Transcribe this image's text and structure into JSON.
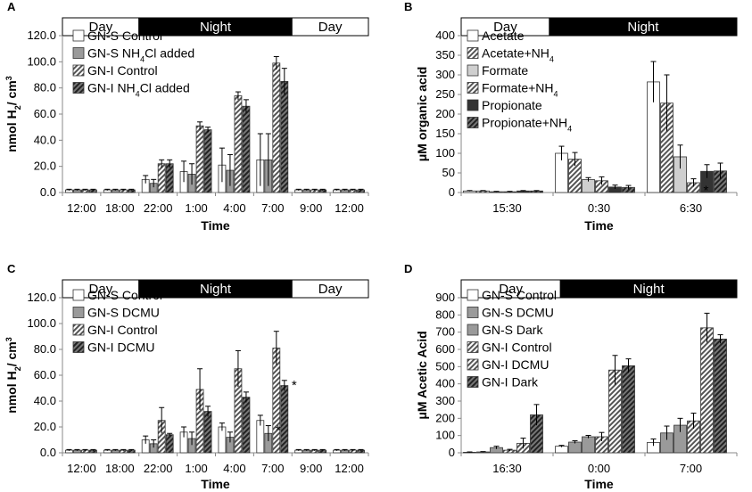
{
  "chart_data": [
    {
      "panel": "A",
      "type": "bar",
      "xlabel": "Time",
      "ylabel_main": "nmol H",
      "ylabel_sub": "2",
      "ylabel_rest": "/ cm",
      "ylabel_sup": "3",
      "ylim": [
        0,
        120
      ],
      "yticks": [
        "0.0",
        "20.0",
        "40.0",
        "60.0",
        "80.0",
        "100.0",
        "120.0"
      ],
      "categories": [
        "12:00",
        "18:00",
        "22:00",
        "1:00",
        "4:00",
        "7:00",
        "9:00",
        "12:00"
      ],
      "daynight": [
        {
          "label": "Day",
          "dark": false,
          "from": 0,
          "to": 2
        },
        {
          "label": "Night",
          "dark": true,
          "from": 2,
          "to": 6
        },
        {
          "label": "Day",
          "dark": false,
          "from": 6,
          "to": 8
        }
      ],
      "legend": [
        {
          "text": "GN-S Control"
        },
        {
          "text": "GN-S NH",
          "sub": "4",
          "rest": "Cl added"
        },
        {
          "text": "GN-I Control"
        },
        {
          "text": "GN-I NH",
          "sub": "4",
          "rest": "Cl added"
        }
      ],
      "series": [
        {
          "name": "GN-S Control",
          "style": "white",
          "values": [
            2,
            2,
            10,
            16,
            21,
            25,
            2,
            2
          ],
          "errors": [
            0.5,
            0.5,
            3,
            8,
            13,
            20,
            0.5,
            0.5
          ]
        },
        {
          "name": "GN-S NH4Cl added",
          "style": "gray",
          "values": [
            2,
            2,
            7,
            14,
            17,
            25,
            2,
            2
          ],
          "errors": [
            0.5,
            0.5,
            3,
            8,
            12,
            20,
            0.5,
            0.5
          ]
        },
        {
          "name": "GN-I Control",
          "style": "stripe",
          "values": [
            2,
            2,
            22,
            51,
            74,
            99,
            2,
            2
          ],
          "errors": [
            0.5,
            0.5,
            3,
            3,
            3,
            5,
            0.5,
            0.5
          ]
        },
        {
          "name": "GN-I NH4Cl added",
          "style": "dstripe",
          "values": [
            2,
            2,
            22,
            48,
            66,
            85,
            2,
            2
          ],
          "errors": [
            0.5,
            0.5,
            3,
            2,
            5,
            10,
            0.5,
            0.5
          ]
        }
      ],
      "annotations": []
    },
    {
      "panel": "B",
      "type": "bar",
      "xlabel": "Time",
      "ylabel_main": "μM organic acid",
      "ylim": [
        0,
        400
      ],
      "yticks": [
        "0",
        "50",
        "100",
        "150",
        "200",
        "250",
        "300",
        "350",
        "400"
      ],
      "categories": [
        "15:30",
        "0:30",
        "6:30"
      ],
      "daynight": [
        {
          "label": "Day",
          "dark": false,
          "from": 0,
          "to": 0.96
        },
        {
          "label": "Night",
          "dark": true,
          "from": 0.96,
          "to": 3
        }
      ],
      "legend": [
        {
          "text": "Acetate"
        },
        {
          "text": "Acetate+NH",
          "sub": "4"
        },
        {
          "text": "Formate"
        },
        {
          "text": "Formate+NH",
          "sub": "4"
        },
        {
          "text": "Propionate"
        },
        {
          "text": "Propionate+NH",
          "sub": "4"
        }
      ],
      "series": [
        {
          "name": "Acetate",
          "style": "white",
          "values": [
            4,
            100,
            282
          ],
          "errors": [
            1,
            18,
            52
          ]
        },
        {
          "name": "Acetate+NH4",
          "style": "stripe",
          "values": [
            4,
            85,
            228
          ],
          "errors": [
            1,
            17,
            72
          ]
        },
        {
          "name": "Formate",
          "style": "lightgray",
          "values": [
            2,
            33,
            91
          ],
          "errors": [
            1,
            5,
            30
          ]
        },
        {
          "name": "Formate+NH4",
          "style": "stripe",
          "values": [
            2,
            30,
            25
          ],
          "errors": [
            1,
            10,
            10
          ]
        },
        {
          "name": "Propionate",
          "style": "black",
          "values": [
            4,
            14,
            54
          ],
          "errors": [
            1,
            5,
            17
          ]
        },
        {
          "name": "Propionate+NH4",
          "style": "dstripe",
          "values": [
            4,
            13,
            55
          ],
          "errors": [
            1,
            5,
            20
          ]
        }
      ],
      "annotations": [
        {
          "text": "*",
          "category": 2,
          "series": 3,
          "offset": 18
        }
      ]
    },
    {
      "panel": "C",
      "type": "bar",
      "xlabel": "Time",
      "ylabel_main": "nmol H",
      "ylabel_sub": "2",
      "ylabel_rest": "/ cm",
      "ylabel_sup": "3",
      "ylim": [
        0,
        120
      ],
      "yticks": [
        "0.0",
        "20.0",
        "40.0",
        "60.0",
        "80.0",
        "100.0",
        "120.0"
      ],
      "categories": [
        "12:00",
        "18:00",
        "22:00",
        "1:00",
        "4:00",
        "7:00",
        "9:00",
        "12:00"
      ],
      "daynight": [
        {
          "label": "Day",
          "dark": false,
          "from": 0,
          "to": 2
        },
        {
          "label": "Night",
          "dark": true,
          "from": 2,
          "to": 6
        },
        {
          "label": "Day",
          "dark": false,
          "from": 6,
          "to": 8
        }
      ],
      "legend": [
        {
          "text": "GN-S Control"
        },
        {
          "text": "GN-S DCMU"
        },
        {
          "text": "GN-I Control"
        },
        {
          "text": "GN-I DCMU"
        }
      ],
      "series": [
        {
          "name": "GN-S Control",
          "style": "white",
          "values": [
            2,
            2,
            10,
            16,
            20,
            25,
            2,
            2
          ],
          "errors": [
            0.5,
            0.5,
            3,
            4,
            3,
            4,
            0.5,
            0.5
          ]
        },
        {
          "name": "GN-S DCMU",
          "style": "gray",
          "values": [
            2,
            2,
            7,
            11,
            12,
            15,
            2,
            2
          ],
          "errors": [
            0.5,
            0.5,
            3,
            5,
            4,
            6,
            0.5,
            0.5
          ]
        },
        {
          "name": "GN-I Control",
          "style": "stripe",
          "values": [
            2,
            2,
            25,
            49,
            65,
            81,
            2,
            2
          ],
          "errors": [
            0.5,
            0.5,
            10,
            16,
            14,
            13,
            0.5,
            0.5
          ]
        },
        {
          "name": "GN-I DCMU",
          "style": "dstripe",
          "values": [
            2,
            2,
            14,
            32,
            43,
            52,
            2,
            2
          ],
          "errors": [
            0.5,
            0.5,
            1,
            4,
            4,
            4,
            0.5,
            0.5
          ]
        }
      ],
      "annotations": [
        {
          "text": "*",
          "category": 5,
          "series": 1,
          "offset": 10
        },
        {
          "text": "*",
          "category": 5,
          "series": 3,
          "offset": 10
        }
      ]
    },
    {
      "panel": "D",
      "type": "bar",
      "xlabel": "Time",
      "ylabel_main": "μM Acetic Acid",
      "ylim": [
        0,
        900
      ],
      "yticks": [
        "0",
        "100",
        "200",
        "300",
        "400",
        "500",
        "600",
        "700",
        "800",
        "900"
      ],
      "categories": [
        "16:30",
        "0:00",
        "7:00"
      ],
      "daynight": [
        {
          "label": "Day",
          "dark": false,
          "from": 0,
          "to": 1.08
        },
        {
          "label": "Night",
          "dark": true,
          "from": 1.08,
          "to": 3
        }
      ],
      "legend": [
        {
          "text": "GN-S Control"
        },
        {
          "text": "GN-S DCMU"
        },
        {
          "text": "GN-S Dark"
        },
        {
          "text": "GN-I Control"
        },
        {
          "text": "GN-I DCMU"
        },
        {
          "text": "GN-I Dark"
        }
      ],
      "series": [
        {
          "name": "GN-S Control",
          "style": "white",
          "values": [
            3,
            38,
            60
          ],
          "errors": [
            2,
            5,
            20
          ]
        },
        {
          "name": "GN-S DCMU",
          "style": "gray",
          "values": [
            5,
            62,
            115
          ],
          "errors": [
            2,
            8,
            40
          ]
        },
        {
          "name": "GN-S Dark",
          "style": "gray",
          "values": [
            30,
            93,
            160
          ],
          "errors": [
            8,
            8,
            40
          ]
        },
        {
          "name": "GN-I Control",
          "style": "stripe",
          "values": [
            15,
            93,
            185
          ],
          "errors": [
            5,
            25,
            45
          ]
        },
        {
          "name": "GN-I DCMU",
          "style": "stripe",
          "values": [
            55,
            480,
            725
          ],
          "errors": [
            30,
            85,
            85
          ]
        },
        {
          "name": "GN-I Dark",
          "style": "dstripe",
          "values": [
            220,
            505,
            660
          ],
          "errors": [
            60,
            40,
            25
          ]
        }
      ],
      "annotations": []
    }
  ]
}
